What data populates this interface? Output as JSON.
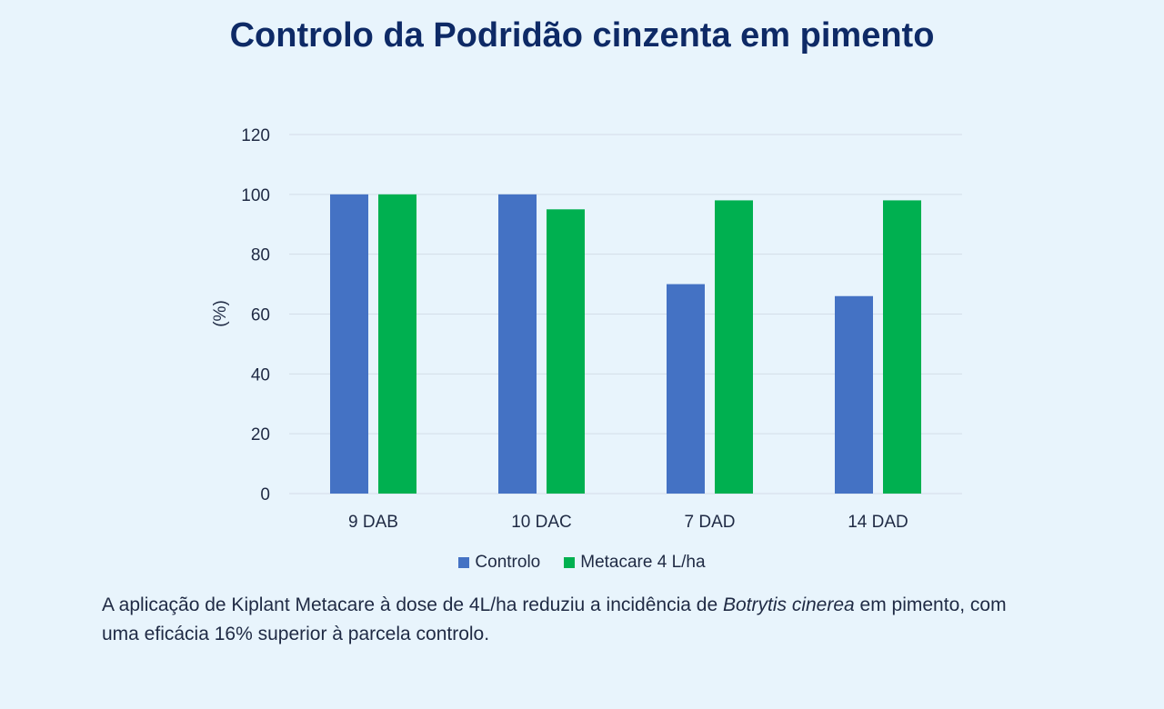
{
  "title": "Controlo da Podridão cinzenta em pimento",
  "caption": {
    "before": "A aplicação de Kiplant Metacare à dose de 4L/ha reduziu a incidência de ",
    "italic": "Botrytis cinerea",
    "after": " em pimento, com uma eficácia 16% superior à parcela controlo."
  },
  "chart_data": {
    "type": "bar",
    "title": "Controlo da Podridão cinzenta em pimento",
    "xlabel": "",
    "ylabel": "(%)",
    "ylim": [
      0,
      120
    ],
    "yticks": [
      0,
      20,
      40,
      60,
      80,
      100,
      120
    ],
    "grid": true,
    "legend_position": "bottom",
    "categories": [
      "9 DAB",
      "10 DAC",
      "7 DAD",
      "14 DAD"
    ],
    "series": [
      {
        "name": "Controlo",
        "color": "#4472c4",
        "values": [
          100,
          100,
          70,
          66
        ]
      },
      {
        "name": "Metacare 4 L/ha",
        "color": "#00b050",
        "values": [
          100,
          95,
          98,
          98
        ]
      }
    ]
  }
}
